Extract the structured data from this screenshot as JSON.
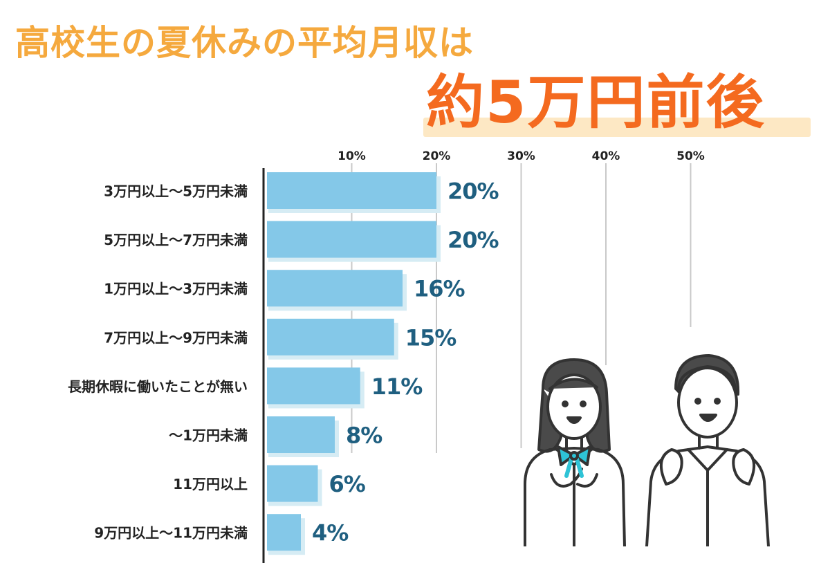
{
  "header": {
    "title_line1": "高校生の夏休みの平均月収は",
    "title_line2": "約5万円前後"
  },
  "chart_data": {
    "type": "bar",
    "orientation": "horizontal",
    "categories": [
      "3万円以上〜5万円未満",
      "5万円以上〜7万円未満",
      "1万円以上〜3万円未満",
      "7万円以上〜9万円未満",
      "長期休暇に働いたことが無い",
      "〜1万円未満",
      "11万円以上",
      "9万円以上〜11万円未満"
    ],
    "values": [
      20,
      20,
      16,
      15,
      11,
      8,
      6,
      4
    ],
    "value_labels": [
      "20%",
      "20%",
      "16%",
      "15%",
      "11%",
      "8%",
      "6%",
      "4%"
    ],
    "xticks": [
      10,
      20,
      30,
      40,
      50
    ],
    "xtick_labels": [
      "10%",
      "20%",
      "30%",
      "40%",
      "50%"
    ],
    "xlim": [
      0,
      50
    ],
    "grid": true,
    "colors": {
      "bar": "#84c8e8",
      "bar_shadow": "#d6ecf4",
      "value_label": "#1f5f80",
      "grid": "#c9c9c9",
      "axis": "#222222"
    }
  }
}
